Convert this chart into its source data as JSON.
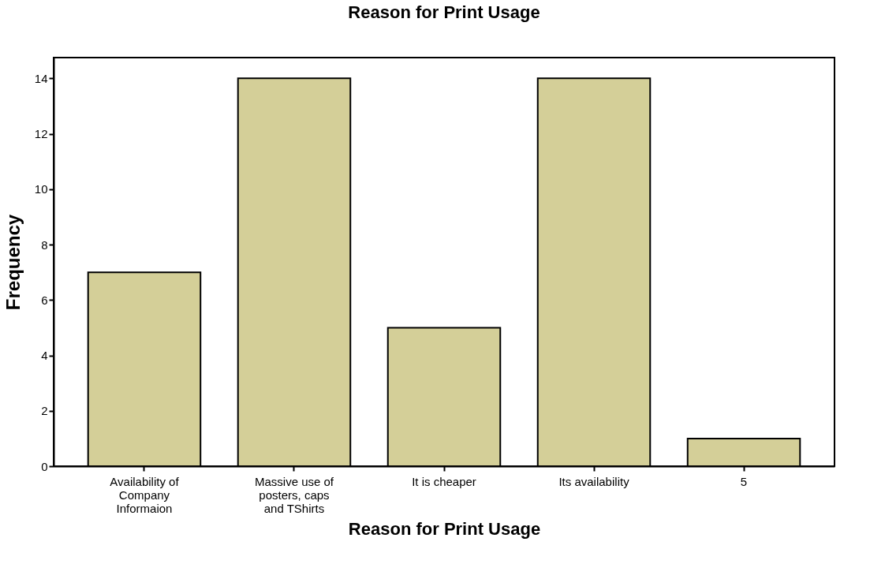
{
  "chart_data": {
    "type": "bar",
    "title": "Reason for Print Usage",
    "xlabel": "Reason for Print Usage",
    "ylabel": "Frequency",
    "categories": [
      "Availability of Company Informaion",
      "Massive use of posters, caps and TShirts",
      "It is cheaper",
      "Its availability",
      "5"
    ],
    "values": [
      7,
      14,
      5,
      14,
      1
    ],
    "color": "#d4cf98",
    "ylim": [
      0,
      14.75
    ],
    "yticks": [
      0,
      2,
      4,
      6,
      8,
      10,
      12,
      14
    ],
    "grid": false
  }
}
